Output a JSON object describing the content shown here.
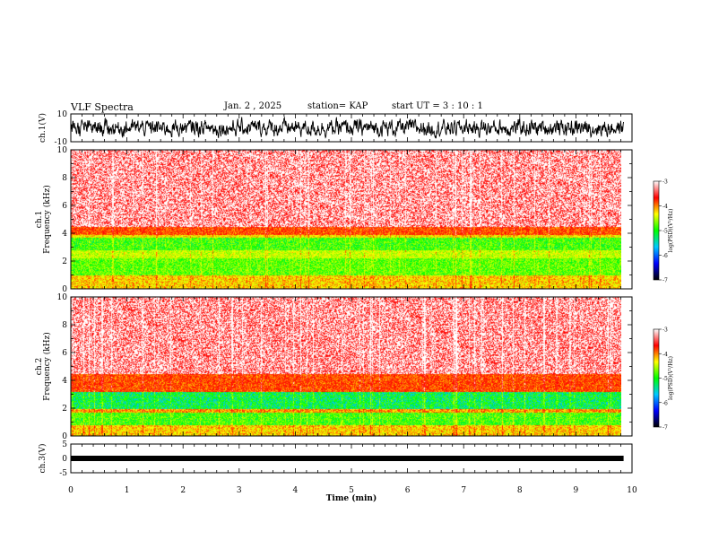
{
  "header": {
    "title": "VLF Spectra",
    "date": "Jan. 2 , 2025",
    "station": "station= KAP",
    "start": "start UT =  3 : 10 : 1"
  },
  "panels": {
    "ch1_wave": {
      "ylabel": "ch.1(V)",
      "ticks": [
        "10",
        "-10"
      ]
    },
    "ch1_spec": {
      "ylabel": "ch.1\nFrequency (kHz)",
      "ticks": [
        "10",
        "8",
        "6",
        "4",
        "2",
        "0"
      ]
    },
    "ch2_spec": {
      "ylabel": "ch.2\nFrequency (kHz)",
      "ticks": [
        "10",
        "8",
        "6",
        "4",
        "2",
        "0"
      ]
    },
    "ch3_wave": {
      "ylabel": "ch.3(V)",
      "ticks": [
        "5",
        "0",
        "-5"
      ]
    }
  },
  "colorbar": {
    "label": "log(PSD)(V²/Hz)",
    "ticks": [
      "-3",
      "-4",
      "-5",
      "-6",
      "-7"
    ],
    "colors": [
      "#000000",
      "#0000ff",
      "#00c8ff",
      "#00ff00",
      "#ffff00",
      "#ff0000",
      "#ffffff"
    ]
  },
  "chart_data": [
    {
      "type": "line",
      "title": "ch.1 waveform",
      "ylabel": "ch.1(V)",
      "xlim": [
        0,
        10
      ],
      "ylim": [
        -10,
        10
      ],
      "x_range_data": [
        0,
        9.85
      ],
      "description_values": {
        "typical_amplitude_V": [
          -5,
          5
        ]
      }
    },
    {
      "type": "heatmap",
      "ylabel": "ch.1 Frequency (kHz)",
      "xlabel": "Time (min)",
      "xlim": [
        0,
        10
      ],
      "ylim": [
        0,
        10
      ],
      "color_scale": {
        "min": -7,
        "max": -3,
        "unit": "log(PSD)(V²/Hz)"
      },
      "bands_khz": [
        {
          "from": 4.5,
          "to": 10,
          "log_psd": -3.2
        },
        {
          "from": 3.9,
          "to": 4.5,
          "log_psd": -3.9
        },
        {
          "from": 3.7,
          "to": 3.9,
          "log_psd": -4.5
        },
        {
          "from": 2.8,
          "to": 3.7,
          "log_psd": -5.3
        },
        {
          "from": 2.2,
          "to": 2.8,
          "log_psd": -4.8
        },
        {
          "from": 1.0,
          "to": 2.2,
          "log_psd": -5.2
        },
        {
          "from": 0,
          "to": 1.0,
          "log_psd": -4.4
        }
      ]
    },
    {
      "type": "heatmap",
      "ylabel": "ch.2 Frequency (kHz)",
      "xlabel": "Time (min)",
      "xlim": [
        0,
        10
      ],
      "ylim": [
        0,
        10
      ],
      "color_scale": {
        "min": -7,
        "max": -3,
        "unit": "log(PSD)(V²/Hz)"
      },
      "bands_khz": [
        {
          "from": 4.5,
          "to": 10,
          "log_psd": -3.2
        },
        {
          "from": 3.2,
          "to": 4.5,
          "log_psd": -3.9
        },
        {
          "from": 2.0,
          "to": 3.2,
          "log_psd": -5.6
        },
        {
          "from": 1.7,
          "to": 2.0,
          "log_psd": -4.2
        },
        {
          "from": 0.8,
          "to": 1.7,
          "log_psd": -5.3
        },
        {
          "from": 0,
          "to": 0.8,
          "log_psd": -4.4
        }
      ]
    },
    {
      "type": "line",
      "title": "ch.3 waveform",
      "ylabel": "ch.3(V)",
      "xlabel": "Time (min)",
      "xlim": [
        0,
        10
      ],
      "ylim": [
        -5,
        5
      ],
      "x_range_data": [
        0,
        9.85
      ],
      "description_values": {
        "level_V": 0
      }
    }
  ],
  "xaxis": {
    "label": "Time (min)",
    "ticks": [
      "0",
      "1",
      "2",
      "3",
      "4",
      "5",
      "6",
      "7",
      "8",
      "9",
      "10"
    ]
  }
}
